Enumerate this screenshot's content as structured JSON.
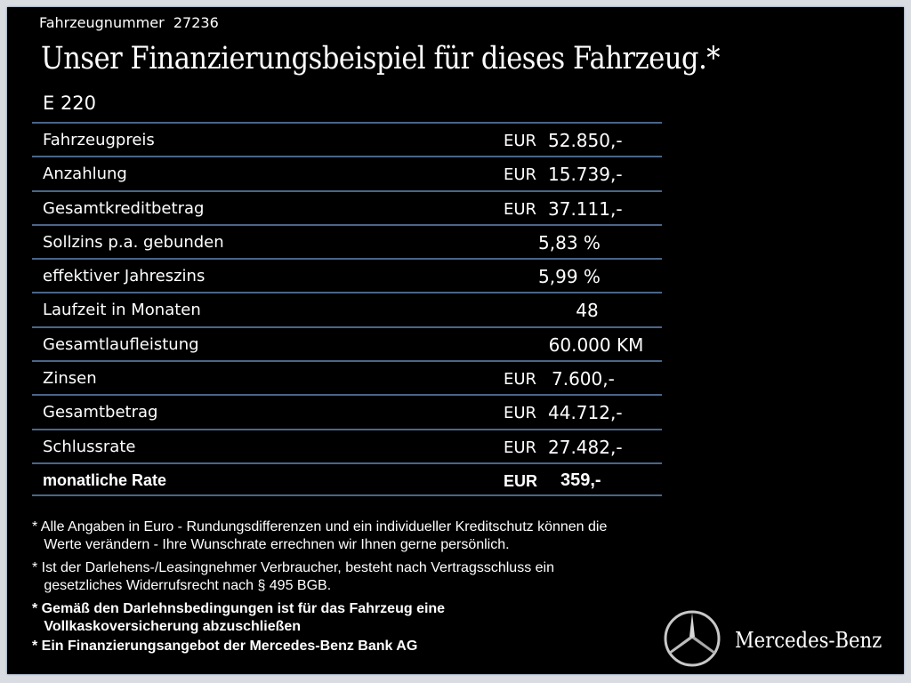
{
  "header": {
    "vehicle_number_label": "Fahrzeugnummer",
    "vehicle_number": "27236",
    "title": "Unser Finanzierungsbeispiel für dieses Fahrzeug.*",
    "model": "E 220"
  },
  "rows": [
    {
      "label": "Fahrzeugpreis",
      "currency": "EUR",
      "value": "52.850,-"
    },
    {
      "label": "Anzahlung",
      "currency": "EUR",
      "value": "15.739,-"
    },
    {
      "label": "Gesamtkreditbetrag",
      "currency": "EUR",
      "value": "37.111,-"
    },
    {
      "label": "Sollzins p.a. gebunden",
      "value": "5,83 %"
    },
    {
      "label": "effektiver Jahreszins",
      "value": "5,99 %"
    },
    {
      "label": "Laufzeit in Monaten",
      "value": "48"
    },
    {
      "label": "Gesamtlaufleistung",
      "value": "60.000 KM"
    },
    {
      "label": "Zinsen",
      "currency": "EUR",
      "value": "7.600,-"
    },
    {
      "label": "Gesamtbetrag",
      "currency": "EUR",
      "value": "44.712,-"
    },
    {
      "label": "Schlussrate",
      "currency": "EUR",
      "value": "27.482,-"
    },
    {
      "label": "monatliche Rate",
      "currency": "EUR",
      "value": "359,-"
    }
  ],
  "notes": [
    "* Alle Angaben in Euro - Rundungsdifferenzen und ein individueller Kreditschutz können die\n   Werte verändern - Ihre Wunschrate errechnen wir Ihnen gerne persönlich.",
    "* Ist der Darlehens-/Leasingnehmer Verbraucher, besteht nach Vertragsschluss ein\n   gesetzliches Widerrufsrecht nach § 495 BGB.",
    "* Gemäß den Darlehnsbedingungen ist für das Fahrzeug eine\n   Vollkaskoversicherung abzuschließen",
    "* Ein Finanzierungsangebot der Mercedes-Benz Bank AG"
  ],
  "brand": {
    "name": "Mercedes-Benz",
    "logo_icon": "three-pointed-star-icon"
  },
  "colors": {
    "background": "#000000",
    "divider": "#4a6688",
    "text": "#ffffff"
  }
}
